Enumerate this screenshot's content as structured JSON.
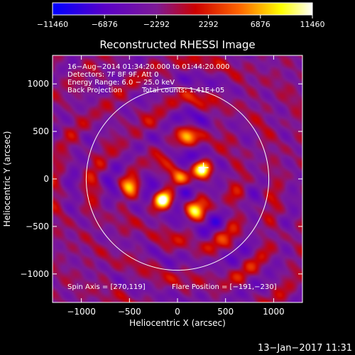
{
  "chart_data": {
    "type": "heatmap",
    "title": "Reconstructed RHESSI Image",
    "xlabel": "Heliocentric X (arcsec)",
    "ylabel": "Heliocentric Y (arcsec)",
    "xlim": [
      -1300,
      1300
    ],
    "ylim": [
      -1300,
      1300
    ],
    "x_ticks": [
      -1000,
      -500,
      0,
      500,
      1000
    ],
    "y_ticks": [
      -1000,
      -500,
      0,
      500,
      1000
    ],
    "x_tick_labels": [
      "−1000",
      "−500",
      "0",
      "500",
      "1000"
    ],
    "y_tick_labels": [
      "−1000",
      "−500",
      "0",
      "500",
      "1000"
    ],
    "colorbar": {
      "range": [
        -11460,
        11460
      ],
      "ticks": [
        -11460,
        -6876,
        -2292,
        2292,
        6876,
        11460
      ],
      "tick_labels": [
        "−11460",
        "−6876",
        "−2292",
        "2292",
        "6876",
        "11460"
      ],
      "colors": [
        "#0000ff",
        "#5a00c8",
        "#7d1a96",
        "#cc0000",
        "#ff6600",
        "#ffff00",
        "#ffffff"
      ]
    },
    "solar_limb_radius_arcsec": 950,
    "flare_marker": [
      270,
      119
    ],
    "bright_sources": [
      {
        "x": -150,
        "y": -220,
        "amp": 1.0
      },
      {
        "x": 260,
        "y": 100,
        "amp": 0.9
      },
      {
        "x": 20,
        "y": 5,
        "amp": 0.55
      },
      {
        "x": 180,
        "y": -340,
        "amp": 0.5
      },
      {
        "x": -500,
        "y": -80,
        "amp": 0.45
      },
      {
        "x": 100,
        "y": 450,
        "amp": 0.4
      }
    ],
    "annotations": {
      "time_range": "16−Aug−2014 01:34:20.000 to 01:44:20.000",
      "detectors": "Detectors: 7F 8F 9F, Att 0",
      "energy_range": "Energy Range: 6.0 − 25.0 keV",
      "method": "Back Projection",
      "total_counts": "Total counts: 1.41E+05",
      "spin_axis": "Spin Axis = [270,119]",
      "flare_position": "Flare Position = [−191,−230]"
    }
  },
  "footer": {
    "date": "13−Jan−2017 11:31"
  }
}
